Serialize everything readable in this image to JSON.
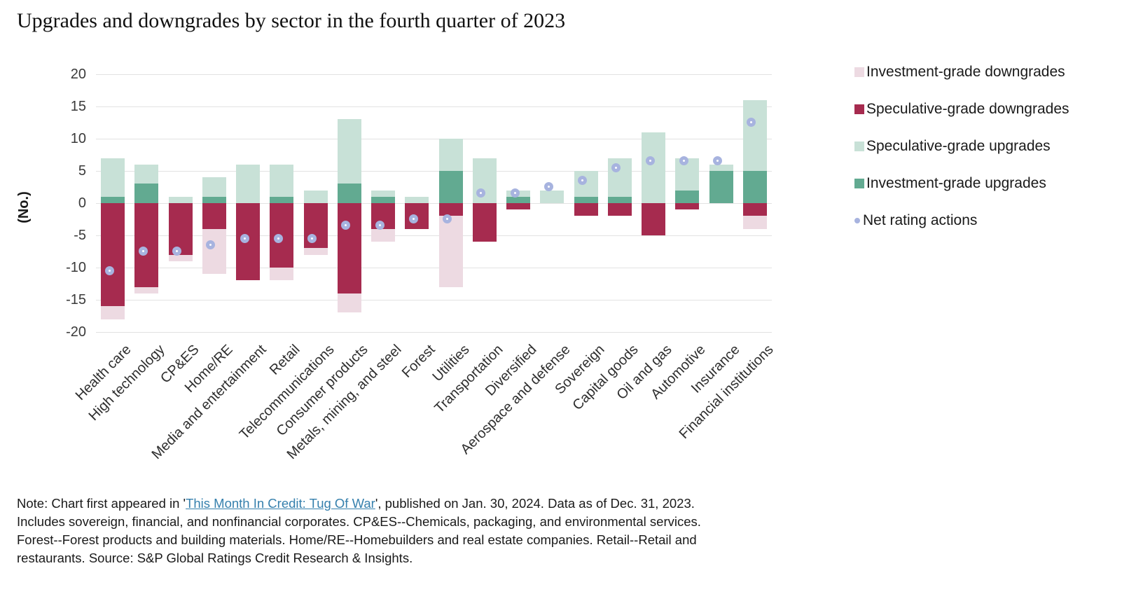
{
  "title": "Upgrades and downgrades by sector in the fourth quarter of 2023",
  "chart_data": {
    "type": "bar",
    "stacked": true,
    "ylabel": "(No.)",
    "ylim": [
      -20,
      20
    ],
    "y_ticks": [
      20,
      15,
      10,
      5,
      0,
      -5,
      -10,
      -15,
      -20
    ],
    "grid": "horizontal",
    "legend_position": "right",
    "categories": [
      "Health care",
      "High technology",
      "CP&ES",
      "Home/RE",
      "Media and entertainment",
      "Retail",
      "Telecommunications",
      "Consumer products",
      "Metals, mining, and steel",
      "Forest",
      "Utilities",
      "Transportation",
      "Diversified",
      "Aerospace and defense",
      "Sovereign",
      "Capital goods",
      "Oil and gas",
      "Automotive",
      "Insurance",
      "Financial institutions"
    ],
    "series": [
      {
        "key": "ig_down",
        "name": "Investment-grade downgrades",
        "color": "#eddae2",
        "sign": "negative",
        "stack_order": 2,
        "values": [
          2,
          1,
          1,
          7,
          0,
          2,
          1,
          3,
          2,
          0,
          11,
          0,
          0,
          0,
          0,
          0,
          0,
          0,
          0,
          2
        ]
      },
      {
        "key": "sg_down",
        "name": "Speculative-grade downgrades",
        "color": "#a62b4f",
        "sign": "negative",
        "stack_order": 1,
        "values": [
          16,
          13,
          8,
          4,
          12,
          10,
          7,
          14,
          4,
          4,
          2,
          6,
          1,
          0,
          2,
          2,
          5,
          1,
          0,
          2
        ]
      },
      {
        "key": "sg_up",
        "name": "Speculative-grade upgrades",
        "color": "#c8e1d7",
        "sign": "positive",
        "stack_order": 2,
        "values": [
          6,
          3,
          1,
          3,
          6,
          5,
          2,
          10,
          1,
          1,
          5,
          7,
          1,
          2,
          4,
          6,
          11,
          5,
          1,
          11
        ]
      },
      {
        "key": "ig_up",
        "name": "Investment-grade upgrades",
        "color": "#62aa91",
        "sign": "positive",
        "stack_order": 1,
        "values": [
          1,
          3,
          0,
          1,
          0,
          1,
          0,
          3,
          1,
          0,
          5,
          0,
          1,
          0,
          1,
          1,
          0,
          2,
          5,
          5
        ]
      },
      {
        "key": "net",
        "name": "Net rating actions",
        "marker": "ring",
        "marker_color": "#a7b3df",
        "values": [
          -11,
          -8,
          -8,
          -7,
          -6,
          -6,
          -6,
          -4,
          -4,
          -3,
          -3,
          1,
          1,
          2,
          3,
          5,
          6,
          6,
          6,
          12
        ]
      }
    ]
  },
  "legend": {
    "items": [
      {
        "label": "Investment-grade downgrades",
        "color": "#eddae2",
        "marker": "square"
      },
      {
        "label": "Speculative-grade downgrades",
        "color": "#a62b4f",
        "marker": "square"
      },
      {
        "label": "Speculative-grade upgrades",
        "color": "#c8e1d7",
        "marker": "square"
      },
      {
        "label": "Investment-grade upgrades",
        "color": "#62aa91",
        "marker": "square"
      },
      {
        "label": "Net rating actions",
        "color": "#a7b3df",
        "marker": "ring"
      }
    ]
  },
  "note": {
    "line1_pre": "Note: Chart first appeared in '",
    "link_text": "This Month In Credit: Tug Of War",
    "line1_post": "', published on Jan. 30, 2024. Data as of Dec. 31, 2023.",
    "line2": "Includes sovereign, financial, and nonfinancial corporates. CP&ES--Chemicals, packaging, and environmental services.",
    "line3": "Forest--Forest products and building materials. Home/RE--Homebuilders and real estate companies. Retail--Retail and",
    "line4": "restaurants. Source: S&P Global Ratings Credit Research & Insights.",
    "link_color": "#3680ad"
  },
  "colors": {
    "gridline": "#e2e2e2",
    "background": "#ffffff",
    "axis_text": "#3a3a3a"
  }
}
